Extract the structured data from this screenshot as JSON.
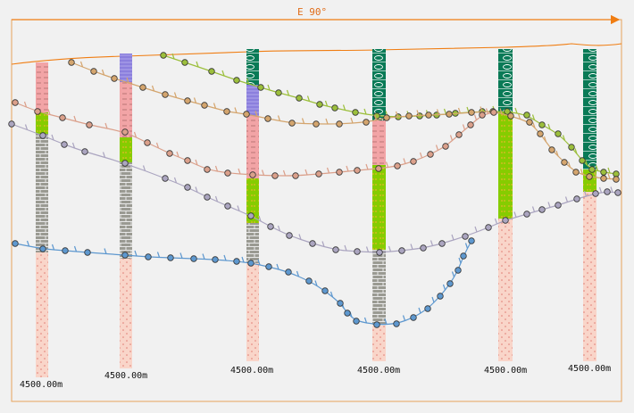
{
  "header": {
    "direction_label": "E 90°"
  },
  "colors": {
    "accent": "#f07d12",
    "border": "#e8a25c",
    "sand_fill": "#f9d5c9",
    "sand_dots": "#e07a72",
    "mudstone_fill": "#f2a4a6",
    "mudstone_dash": "#ad6b6b",
    "limestone_fill": "#9a9a92",
    "limestone_line": "#e8e8e8",
    "shale_fill": "#8b7fdd",
    "green_fill": "#86cc00",
    "green_dots": "#f4b431",
    "coal_fill": "#097a56",
    "coal_mark": "#ffffff",
    "horizon_olive": "#9cbf3c",
    "horizon_tan": "#d4a56e",
    "horizon_salmon": "#dba08b",
    "horizon_lavender": "#aba5c0",
    "horizon_blue": "#5e98cf"
  },
  "wells": [
    {
      "id": "W1",
      "depth_label": "4500.00m"
    },
    {
      "id": "W2",
      "depth_label": "4500.00m"
    },
    {
      "id": "W3",
      "depth_label": "4500.00m"
    },
    {
      "id": "W4",
      "depth_label": "4500.00m"
    },
    {
      "id": "W5",
      "depth_label": "4500.00m"
    },
    {
      "id": "W6",
      "depth_label": "4500.00m"
    }
  ]
}
